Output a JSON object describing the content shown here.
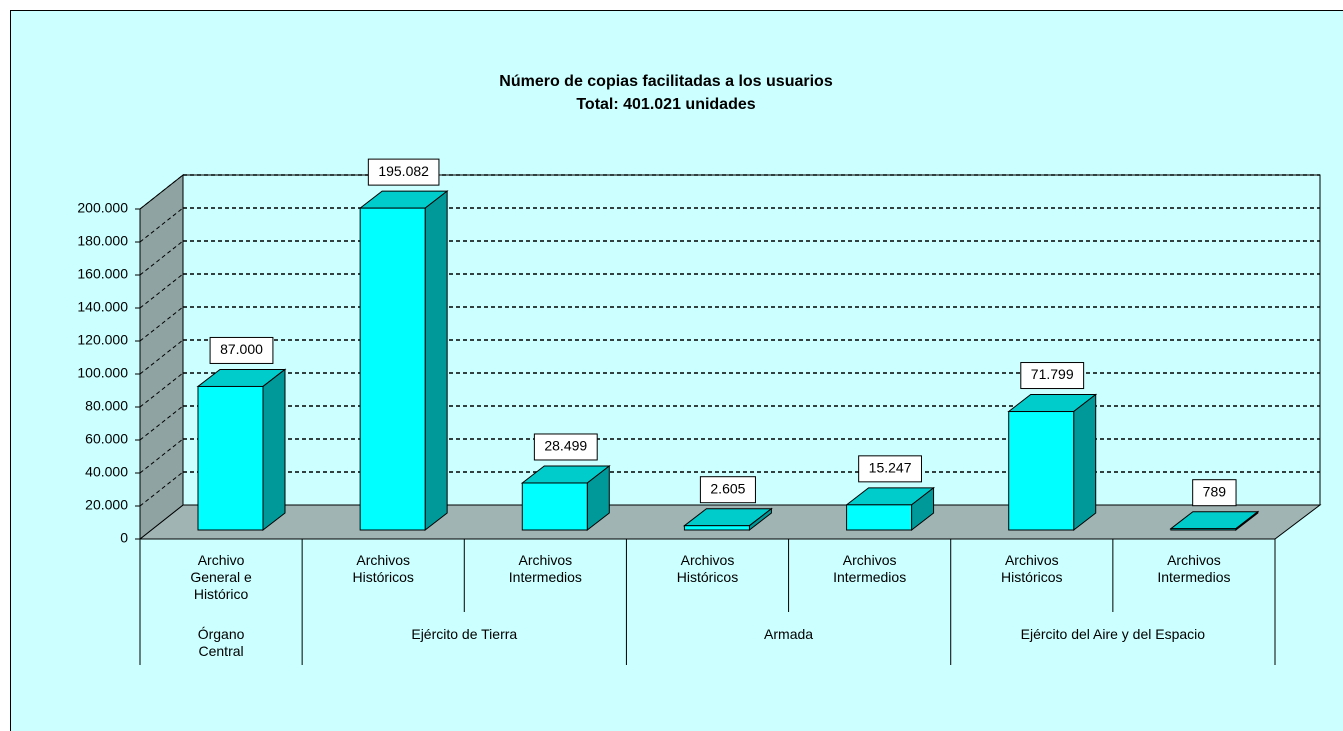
{
  "chart_data": {
    "type": "bar3d",
    "title": "Número de copias facilitadas a los usuarios",
    "subtitle": "Total: 401.021 unidades",
    "color": "#00ffff",
    "groups": [
      {
        "name": "Órgano Central",
        "categories": [
          "Archivo General e Histórico"
        ],
        "values": [
          87000
        ],
        "value_labels": [
          "87.000"
        ]
      },
      {
        "name": "Ejército de Tierra",
        "categories": [
          "Archivos Históricos",
          "Archivos Intermedios"
        ],
        "values": [
          195082,
          28499
        ],
        "value_labels": [
          "195.082",
          "28.499"
        ]
      },
      {
        "name": "Armada",
        "categories": [
          "Archivos Históricos",
          "Archivos Intermedios"
        ],
        "values": [
          2605,
          15247
        ],
        "value_labels": [
          "2.605",
          "15.247"
        ]
      },
      {
        "name": "Ejército del Aire y del Espacio",
        "categories": [
          "Archivos Históricos",
          "Archivos Intermedios"
        ],
        "values": [
          71799,
          789
        ],
        "value_labels": [
          "71.799",
          "789"
        ]
      }
    ],
    "ylim": [
      0,
      200000
    ],
    "yticks": [
      0,
      {
        "value": 20000,
        "label": "20.000"
      },
      {
        "value": 40000,
        "label": "40.000"
      },
      {
        "value": 60000,
        "label": "60.000"
      },
      {
        "value": 80000,
        "label": "80.000"
      },
      {
        "value": 100000,
        "label": "100.000"
      },
      {
        "value": 120000,
        "label": "120.000"
      },
      {
        "value": 140000,
        "label": "140.000"
      },
      {
        "value": 160000,
        "label": "160.000"
      },
      {
        "value": 180000,
        "label": "180.000"
      },
      {
        "value": 200000,
        "label": "200.000"
      }
    ],
    "grid": true
  }
}
